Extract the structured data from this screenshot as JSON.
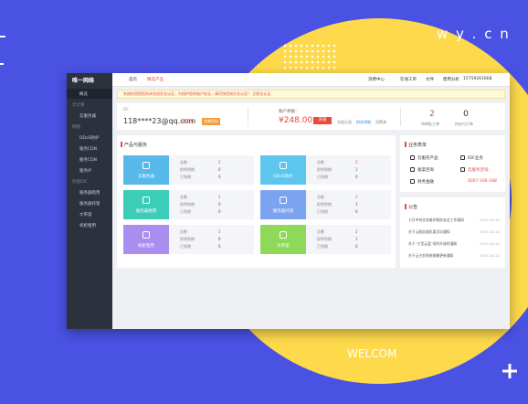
{
  "brand": {
    "site": "w y . c n",
    "welcome": "WELCOM"
  },
  "app": {
    "logo": "唯一网络",
    "nav": [
      "首页",
      "精选产品"
    ],
    "topbar": [
      "消费中心",
      "在线工单",
      "文件",
      "使用分析",
      "15759261668"
    ],
    "sidebar": [
      {
        "label": "概览",
        "group": false
      },
      {
        "label": "云计算",
        "group": true
      },
      {
        "label": "云服务器",
        "group": false
      },
      {
        "label": "网络",
        "group": true
      },
      {
        "label": "DDoS防护",
        "group": false
      },
      {
        "label": "服务CDN",
        "group": false
      },
      {
        "label": "服务CDN",
        "group": false
      },
      {
        "label": "服务IP",
        "group": false
      },
      {
        "label": "托管IDC",
        "group": true
      },
      {
        "label": "服务器租用",
        "group": false
      },
      {
        "label": "服务器托管",
        "group": false
      },
      {
        "label": "大带宽",
        "group": false
      },
      {
        "label": "机柜租用",
        "group": false
      }
    ],
    "notice": "系统检测到您尚未完成实名认证，为保护您的账户安全，请尽快完成实名认证！ 立即去认证",
    "account": {
      "id": "ID:",
      "email": "118****23@qq.com",
      "verified": "未实名",
      "badge": "完善资料"
    },
    "balance": {
      "label": "账户余额：",
      "amount": "¥248.00",
      "button": "充值",
      "links": [
        "充值记录",
        "财务明细",
        "消费券"
      ]
    },
    "stats": [
      {
        "value": "2",
        "label": "待审批工单"
      },
      {
        "value": "0",
        "label": "待支付订单"
      }
    ],
    "products": {
      "title": "产品与服务",
      "items": [
        {
          "name": "云服务器",
          "color": "#57b8ea",
          "rows": [
            [
              "总数",
              "2"
            ],
            [
              "即将到期",
              "0"
            ],
            [
              "已到期",
              "0"
            ]
          ]
        },
        {
          "name": "DDoS防护",
          "color": "#5cc6ee",
          "rows": [
            [
              "总数",
              "2"
            ],
            [
              "即将到期",
              "1"
            ],
            [
              "已到期",
              "0"
            ]
          ]
        },
        {
          "name": "服务器租用",
          "color": "#3ccdb9",
          "rows": [
            [
              "总数",
              "2"
            ],
            [
              "即将到期",
              "0"
            ],
            [
              "已到期",
              "0"
            ]
          ]
        },
        {
          "name": "服务器托管",
          "color": "#7ba3ef",
          "rows": [
            [
              "总数",
              "2"
            ],
            [
              "即将到期",
              "1"
            ],
            [
              "已到期",
              "0"
            ]
          ]
        },
        {
          "name": "机柜租用",
          "color": "#a98ef0",
          "rows": [
            [
              "总数",
              "2"
            ],
            [
              "即将到期",
              "0"
            ],
            [
              "已到期",
              "0"
            ]
          ]
        },
        {
          "name": "大带宽",
          "color": "#8ed85a",
          "rows": [
            [
              "总数",
              "2"
            ],
            [
              "即将到期",
              "1"
            ],
            [
              "已到期",
              "0"
            ]
          ]
        }
      ]
    },
    "quick": {
      "title": "业务表单",
      "items": [
        "云服务产品",
        "IDC业务",
        "备案咨询",
        "云服务咨询",
        "财务金融"
      ],
      "phone": "4007-166-188"
    },
    "announce": {
      "title": "公告",
      "items": [
        {
          "text": "七月中旬业务维护服务安全工作通知",
          "date": "2017-04-12"
        },
        {
          "text": "关于云服务器优惠活动通知",
          "date": "2017-04-12"
        },
        {
          "text": "关于“大型云盘”续约升级的通知",
          "date": "2017-04-12"
        },
        {
          "text": "关于云主机系统镜像更新通知",
          "date": "2017-04-12"
        }
      ]
    }
  }
}
